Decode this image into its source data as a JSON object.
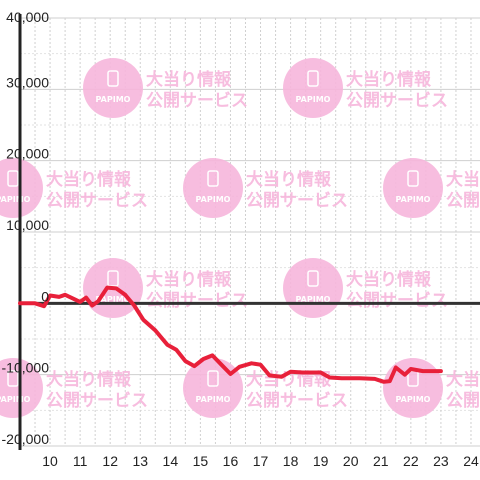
{
  "chart_data": {
    "type": "line",
    "x_ticks": [
      "10",
      "11",
      "12",
      "13",
      "14",
      "15",
      "16",
      "17",
      "18",
      "19",
      "20",
      "21",
      "22",
      "23",
      "24"
    ],
    "y_ticks": [
      "40,000",
      "30,000",
      "20,000",
      "10,000",
      "0",
      "-10,000",
      "-20,000"
    ],
    "y_tick_values": [
      40000,
      30000,
      20000,
      10000,
      0,
      -10000,
      -20000
    ],
    "xlim": [
      9,
      24.3
    ],
    "ylim": [
      -20000,
      40000
    ],
    "grid": true,
    "series": [
      {
        "color": "#e8203a",
        "points": [
          [
            9.0,
            0
          ],
          [
            9.5,
            0
          ],
          [
            9.8,
            -400
          ],
          [
            10.0,
            1100
          ],
          [
            10.3,
            900
          ],
          [
            10.5,
            1200
          ],
          [
            10.8,
            600
          ],
          [
            11.0,
            200
          ],
          [
            11.2,
            800
          ],
          [
            11.4,
            -300
          ],
          [
            11.6,
            300
          ],
          [
            11.9,
            2200
          ],
          [
            12.2,
            2100
          ],
          [
            12.5,
            1200
          ],
          [
            12.8,
            -300
          ],
          [
            13.1,
            -2300
          ],
          [
            13.5,
            -3800
          ],
          [
            13.9,
            -5800
          ],
          [
            14.2,
            -6500
          ],
          [
            14.5,
            -8100
          ],
          [
            14.8,
            -8800
          ],
          [
            15.1,
            -7800
          ],
          [
            15.4,
            -7300
          ],
          [
            15.7,
            -8600
          ],
          [
            16.0,
            -9900
          ],
          [
            16.3,
            -8900
          ],
          [
            16.7,
            -8400
          ],
          [
            17.0,
            -8600
          ],
          [
            17.3,
            -10100
          ],
          [
            17.7,
            -10300
          ],
          [
            18.0,
            -9600
          ],
          [
            18.4,
            -9700
          ],
          [
            19.0,
            -9700
          ],
          [
            19.3,
            -10400
          ],
          [
            19.7,
            -10500
          ],
          [
            20.3,
            -10500
          ],
          [
            20.8,
            -10600
          ],
          [
            21.1,
            -11000
          ],
          [
            21.3,
            -10900
          ],
          [
            21.5,
            -9000
          ],
          [
            21.8,
            -10000
          ],
          [
            22.0,
            -9200
          ],
          [
            22.4,
            -9500
          ],
          [
            23.0,
            -9500
          ]
        ]
      }
    ]
  },
  "watermark": {
    "line1": "大当り情報",
    "line2": "公開サービス",
    "logo": "PAPIMO",
    "color": "#f7b6dc"
  }
}
